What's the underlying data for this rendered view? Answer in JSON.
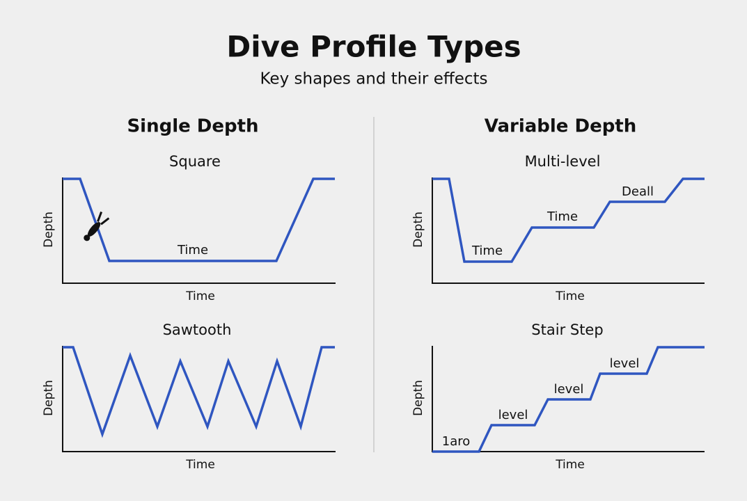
{
  "header": {
    "title": "Dive Profile Types",
    "subtitle": "Key shapes and their effects"
  },
  "sections": [
    {
      "title": "Single Depth",
      "panels": [
        {
          "title": "Square",
          "y_label": "Depth",
          "x_label": "Time",
          "annotations": [
            "Time"
          ]
        },
        {
          "title": "Sawtooth",
          "y_label": "Depth",
          "x_label": "Time",
          "annotations": []
        }
      ]
    },
    {
      "title": "Variable Depth",
      "panels": [
        {
          "title": "Multi-level",
          "y_label": "Depth",
          "x_label": "Time",
          "annotations": [
            "Time",
            "Time",
            "Deall"
          ]
        },
        {
          "title": "Stair Step",
          "y_label": "Depth",
          "x_label": "Time",
          "annotations": [
            "1aro",
            "level",
            "level",
            "level"
          ]
        }
      ]
    }
  ]
}
